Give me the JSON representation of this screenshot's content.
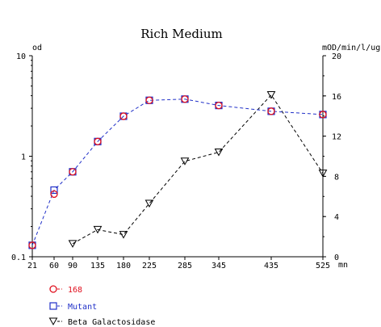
{
  "chart_data": {
    "type": "line",
    "title": "Rich Medium",
    "x_unit": "mn",
    "y_left_label": "od",
    "y_right_label": "mOD/min/l/ug",
    "y_left_scale": "log",
    "y_left_range": [
      0.1,
      10
    ],
    "y_left_ticks": [
      "10",
      "1",
      "0.1"
    ],
    "y_right_range": [
      0,
      20
    ],
    "y_right_ticks": [
      "20",
      "16",
      "12",
      "8",
      "4",
      "0"
    ],
    "x_ticks": [
      "21",
      "60",
      "90",
      "135",
      "180",
      "225",
      "285",
      "345",
      "435",
      "525"
    ],
    "grid": false,
    "legend_position": "bottom-left",
    "series": [
      {
        "name": "168",
        "axis": "left",
        "marker": "circle",
        "color": "#e0101e",
        "x": [
          "21",
          "60",
          "90",
          "135",
          "180",
          "225",
          "285",
          "345",
          "435",
          "525"
        ],
        "values": [
          0.13,
          0.42,
          0.7,
          1.4,
          2.5,
          3.6,
          3.7,
          3.2,
          2.8,
          2.6
        ]
      },
      {
        "name": "Mutant",
        "axis": "left",
        "marker": "square",
        "color": "#2030c8",
        "x": [
          "21",
          "60",
          "90",
          "135",
          "180",
          "225",
          "285",
          "345",
          "435",
          "525"
        ],
        "values": [
          0.13,
          0.46,
          0.7,
          1.4,
          2.5,
          3.6,
          3.7,
          3.2,
          2.8,
          2.6
        ]
      },
      {
        "name": "Beta Galactosidase",
        "axis": "right",
        "marker": "triangle-down",
        "color": "#000000",
        "x": [
          "90",
          "135",
          "180",
          "225",
          "285",
          "345",
          "435",
          "525"
        ],
        "values": [
          1.3,
          2.7,
          2.2,
          5.3,
          9.5,
          10.4,
          16.1,
          8.3
        ]
      }
    ]
  }
}
